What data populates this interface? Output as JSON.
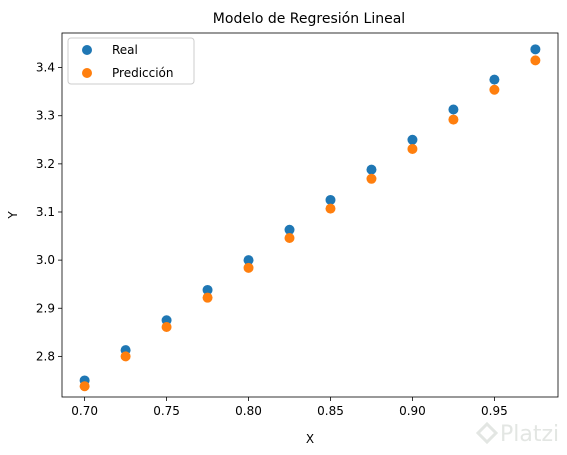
{
  "chart_data": {
    "type": "scatter",
    "title": "Modelo de Regresión Lineal",
    "xlabel": "X",
    "ylabel": "Y",
    "xlim": [
      0.6862,
      0.9888
    ],
    "ylim": [
      2.7156,
      3.4719
    ],
    "xticks": [
      0.7,
      0.75,
      0.8,
      0.85,
      0.9,
      0.95
    ],
    "xtick_labels": [
      "0.70",
      "0.75",
      "0.80",
      "0.85",
      "0.90",
      "0.95"
    ],
    "yticks": [
      2.8,
      2.9,
      3.0,
      3.1,
      3.2,
      3.3,
      3.4
    ],
    "ytick_labels": [
      "2.8",
      "2.9",
      "3.0",
      "3.1",
      "3.2",
      "3.3",
      "3.4"
    ],
    "grid": false,
    "legend_position": "top-left",
    "series": [
      {
        "name": "Real",
        "color": "#1f77b4",
        "x": [
          0.7,
          0.725,
          0.75,
          0.775,
          0.8,
          0.825,
          0.85,
          0.875,
          0.9,
          0.925,
          0.95,
          0.975
        ],
        "y": [
          2.75,
          2.813,
          2.875,
          2.938,
          3.0,
          3.063,
          3.125,
          3.188,
          3.25,
          3.313,
          3.375,
          3.438
        ]
      },
      {
        "name": "Predicción",
        "color": "#ff7f0e",
        "x": [
          0.7,
          0.725,
          0.75,
          0.775,
          0.8,
          0.825,
          0.85,
          0.875,
          0.9,
          0.925,
          0.95,
          0.975
        ],
        "y": [
          2.738,
          2.8,
          2.861,
          2.922,
          2.984,
          3.046,
          3.107,
          3.169,
          3.231,
          3.292,
          3.354,
          3.415
        ]
      }
    ]
  },
  "watermark": {
    "text": "Platzi",
    "icon": "platzi-logo-icon",
    "color": "#e3e6e3"
  }
}
